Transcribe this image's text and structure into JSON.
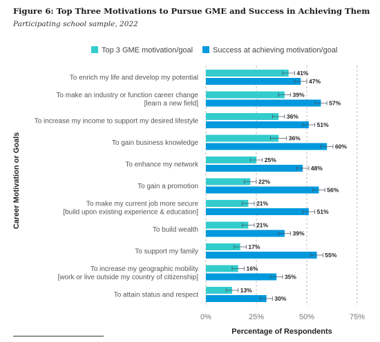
{
  "figure": {
    "title": "Figure 6: Top Three Motivations to Pursue GME and Success in Achieving Them",
    "subtitle": "Participating school sample, 2022"
  },
  "colors": {
    "motivation": "#33cccc",
    "success": "#0099dd",
    "error": "#445566",
    "grid": "#bbbbbb"
  },
  "chart_data": {
    "type": "bar",
    "orientation": "horizontal",
    "xlabel": "Percentage of Respondents",
    "ylabel": "Career Motivation or Goals",
    "xlim": [
      0,
      75
    ],
    "xticks": [
      "0%",
      "25%",
      "50%",
      "75%"
    ],
    "xtick_values": [
      0,
      25,
      50,
      75
    ],
    "grid": true,
    "legend_position": "top",
    "categories": [
      [
        "To enrich my life and develop my potential"
      ],
      [
        "To make an industry or function career change",
        "[learn a new field]"
      ],
      [
        "To increase my income to support my desired lifestyle"
      ],
      [
        "To gain business knowledge"
      ],
      [
        "To enhance my network"
      ],
      [
        "To gain a promotion"
      ],
      [
        "To make my current job more secure",
        "[build upon existing experience & education]"
      ],
      [
        "To build wealth"
      ],
      [
        "To support my family"
      ],
      [
        "To increase my geographic mobility",
        "[work or live outside my country of citizenship]"
      ],
      [
        "To attain status and respect"
      ]
    ],
    "series": [
      {
        "name": "Top 3 GME motivation/goal",
        "values": [
          41,
          39,
          36,
          36,
          25,
          22,
          21,
          21,
          17,
          16,
          13
        ],
        "labels": [
          "41%",
          "39%",
          "36%",
          "36%",
          "25%",
          "22%",
          "21%",
          "21%",
          "17%",
          "16%",
          "13%"
        ],
        "error": [
          3,
          3,
          3,
          4,
          3,
          3,
          3,
          3,
          3,
          3,
          3
        ]
      },
      {
        "name": "Success at achieving motivation/goal",
        "values": [
          47,
          57,
          51,
          60,
          48,
          56,
          51,
          39,
          55,
          35,
          30
        ],
        "labels": [
          "47%",
          "57%",
          "51%",
          "60%",
          "48%",
          "56%",
          "51%",
          "39%",
          "55%",
          "35%",
          "30%"
        ],
        "error": [
          3,
          3,
          3,
          3,
          3,
          3,
          3,
          3,
          3,
          3,
          3
        ]
      }
    ]
  }
}
